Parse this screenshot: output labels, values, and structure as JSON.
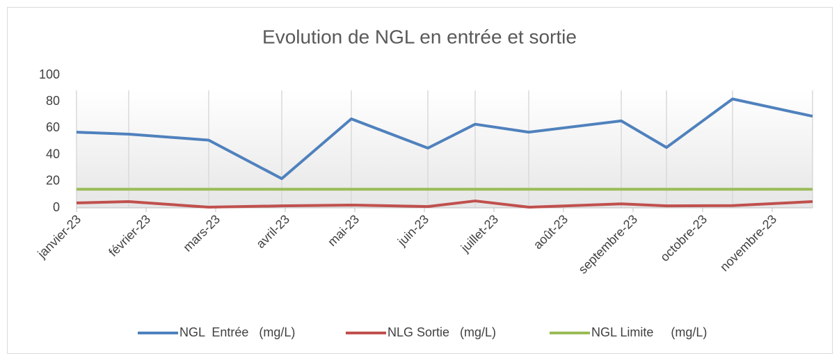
{
  "chart_data": {
    "type": "line",
    "title": "Evolution de NGL en entrée et sortie",
    "x": [
      0,
      0.75,
      1.9,
      2.95,
      3.95,
      5.05,
      5.73,
      6.5,
      7.83,
      8.48,
      9.43,
      10.58
    ],
    "xlim": [
      0,
      10.58
    ],
    "xticks": [
      {
        "value": 0,
        "label": "janvier-23"
      },
      {
        "value": 1,
        "label": "février-23"
      },
      {
        "value": 2,
        "label": "mars-23"
      },
      {
        "value": 3,
        "label": "avril-23"
      },
      {
        "value": 4,
        "label": "mai-23"
      },
      {
        "value": 5,
        "label": "juin-23"
      },
      {
        "value": 6,
        "label": "juillet-23"
      },
      {
        "value": 7,
        "label": "août-23"
      },
      {
        "value": 8,
        "label": "septembre-23"
      },
      {
        "value": 9,
        "label": "octobre-23"
      },
      {
        "value": 10,
        "label": "novembre-23"
      }
    ],
    "ylim": [
      0,
      100
    ],
    "yticks": [
      0,
      20,
      40,
      60,
      80,
      100
    ],
    "legend": "bottom",
    "series": [
      {
        "name": "NGL  Entrée   (mg/L)",
        "color": "#4f81bd",
        "values": [
          57,
          55.5,
          51,
          22,
          67,
          45,
          63,
          57,
          65.5,
          45.5,
          82,
          69
        ]
      },
      {
        "name": "NLG Sortie   (mg/L)",
        "color": "#c0504d",
        "values": [
          3.7,
          4.7,
          0.5,
          1.5,
          2.1,
          1,
          5.2,
          0.5,
          3,
          1.5,
          1.7,
          4.7
        ]
      },
      {
        "name": "NGL Limite     (mg/L)",
        "color": "#9bbb59",
        "values": [
          14,
          14,
          14,
          14,
          14,
          14,
          14,
          14,
          14,
          14,
          14,
          14
        ]
      }
    ]
  }
}
